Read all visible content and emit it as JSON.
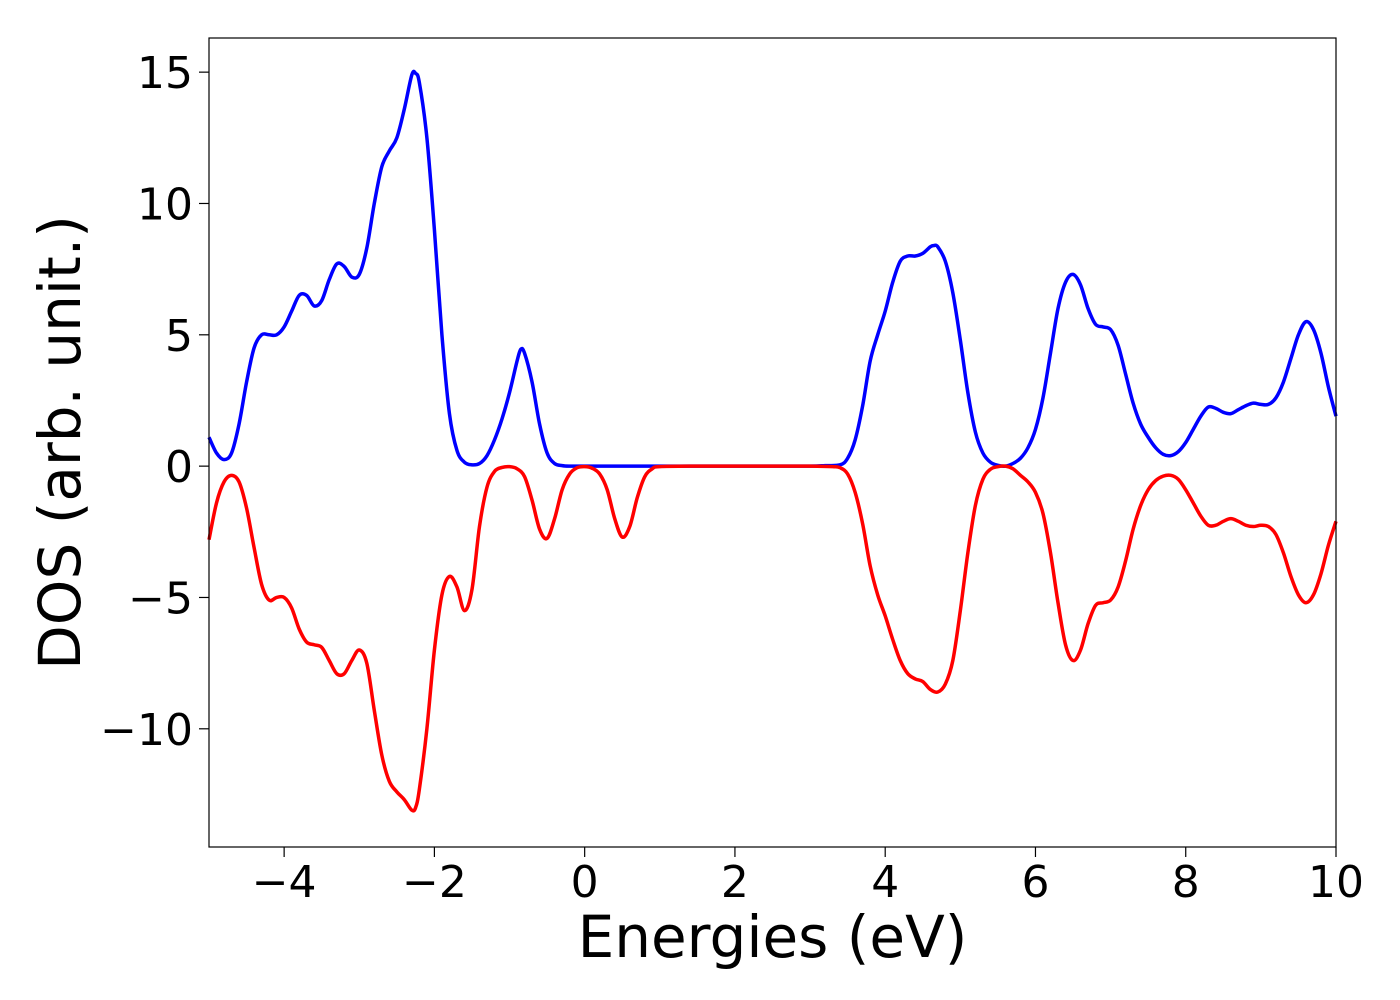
{
  "chart_data": {
    "type": "line",
    "title": "",
    "xlabel": "Energies (eV)",
    "ylabel": "DOS (arb. unit.)",
    "xlim": [
      -5,
      10
    ],
    "ylim": [
      -14.5,
      16.3
    ],
    "x_ticks": [
      -4,
      -2,
      0,
      2,
      4,
      6,
      8,
      10
    ],
    "x_tick_labels": [
      "−4",
      "−2",
      "0",
      "2",
      "4",
      "6",
      "8",
      "10"
    ],
    "y_ticks": [
      -10,
      -5,
      0,
      5,
      10,
      15
    ],
    "y_tick_labels": [
      "−10",
      "−5",
      "0",
      "5",
      "10",
      "15"
    ],
    "grid": false,
    "legend": "none",
    "series": [
      {
        "color": "#0000ff",
        "points": [
          [
            -5.0,
            1.1
          ],
          [
            -4.9,
            0.5
          ],
          [
            -4.8,
            0.25
          ],
          [
            -4.7,
            0.5
          ],
          [
            -4.6,
            1.6
          ],
          [
            -4.5,
            3.2
          ],
          [
            -4.4,
            4.5
          ],
          [
            -4.3,
            5.0
          ],
          [
            -4.2,
            5.0
          ],
          [
            -4.1,
            5.0
          ],
          [
            -4.0,
            5.3
          ],
          [
            -3.9,
            5.9
          ],
          [
            -3.8,
            6.5
          ],
          [
            -3.7,
            6.5
          ],
          [
            -3.6,
            6.1
          ],
          [
            -3.5,
            6.3
          ],
          [
            -3.4,
            7.1
          ],
          [
            -3.3,
            7.7
          ],
          [
            -3.2,
            7.6
          ],
          [
            -3.1,
            7.2
          ],
          [
            -3.0,
            7.3
          ],
          [
            -2.9,
            8.3
          ],
          [
            -2.8,
            10.0
          ],
          [
            -2.7,
            11.4
          ],
          [
            -2.6,
            12.0
          ],
          [
            -2.5,
            12.5
          ],
          [
            -2.4,
            13.6
          ],
          [
            -2.3,
            14.9
          ],
          [
            -2.25,
            14.95
          ],
          [
            -2.2,
            14.6
          ],
          [
            -2.1,
            12.5
          ],
          [
            -2.0,
            9.0
          ],
          [
            -1.9,
            5.0
          ],
          [
            -1.8,
            2.0
          ],
          [
            -1.7,
            0.6
          ],
          [
            -1.6,
            0.15
          ],
          [
            -1.5,
            0.05
          ],
          [
            -1.4,
            0.1
          ],
          [
            -1.3,
            0.4
          ],
          [
            -1.2,
            1.0
          ],
          [
            -1.1,
            1.8
          ],
          [
            -1.0,
            2.8
          ],
          [
            -0.9,
            4.0
          ],
          [
            -0.85,
            4.45
          ],
          [
            -0.8,
            4.3
          ],
          [
            -0.7,
            3.2
          ],
          [
            -0.6,
            1.6
          ],
          [
            -0.5,
            0.5
          ],
          [
            -0.4,
            0.1
          ],
          [
            -0.3,
            0.02
          ],
          [
            -0.2,
            0.0
          ],
          [
            0.0,
            0.0
          ],
          [
            0.5,
            0.0
          ],
          [
            1.0,
            0.0
          ],
          [
            1.5,
            0.0
          ],
          [
            2.0,
            0.0
          ],
          [
            2.5,
            0.0
          ],
          [
            3.0,
            0.0
          ],
          [
            3.2,
            0.02
          ],
          [
            3.4,
            0.05
          ],
          [
            3.5,
            0.3
          ],
          [
            3.6,
            1.0
          ],
          [
            3.7,
            2.3
          ],
          [
            3.8,
            4.0
          ],
          [
            3.9,
            5.0
          ],
          [
            4.0,
            5.9
          ],
          [
            4.1,
            7.0
          ],
          [
            4.2,
            7.8
          ],
          [
            4.3,
            8.0
          ],
          [
            4.4,
            8.0
          ],
          [
            4.5,
            8.1
          ],
          [
            4.6,
            8.35
          ],
          [
            4.65,
            8.4
          ],
          [
            4.7,
            8.35
          ],
          [
            4.8,
            7.8
          ],
          [
            4.9,
            6.6
          ],
          [
            5.0,
            4.8
          ],
          [
            5.1,
            2.8
          ],
          [
            5.2,
            1.3
          ],
          [
            5.3,
            0.5
          ],
          [
            5.4,
            0.15
          ],
          [
            5.5,
            0.03
          ],
          [
            5.6,
            0.0
          ],
          [
            5.7,
            0.1
          ],
          [
            5.8,
            0.3
          ],
          [
            5.9,
            0.7
          ],
          [
            6.0,
            1.4
          ],
          [
            6.1,
            2.6
          ],
          [
            6.2,
            4.3
          ],
          [
            6.3,
            6.0
          ],
          [
            6.4,
            7.0
          ],
          [
            6.5,
            7.3
          ],
          [
            6.6,
            6.9
          ],
          [
            6.7,
            6.0
          ],
          [
            6.8,
            5.4
          ],
          [
            6.9,
            5.3
          ],
          [
            7.0,
            5.2
          ],
          [
            7.1,
            4.6
          ],
          [
            7.2,
            3.5
          ],
          [
            7.3,
            2.4
          ],
          [
            7.4,
            1.6
          ],
          [
            7.5,
            1.1
          ],
          [
            7.6,
            0.7
          ],
          [
            7.7,
            0.45
          ],
          [
            7.8,
            0.4
          ],
          [
            7.9,
            0.55
          ],
          [
            8.0,
            0.9
          ],
          [
            8.1,
            1.4
          ],
          [
            8.2,
            1.9
          ],
          [
            8.3,
            2.25
          ],
          [
            8.4,
            2.2
          ],
          [
            8.5,
            2.05
          ],
          [
            8.6,
            2.0
          ],
          [
            8.7,
            2.15
          ],
          [
            8.8,
            2.3
          ],
          [
            8.9,
            2.4
          ],
          [
            9.0,
            2.35
          ],
          [
            9.1,
            2.35
          ],
          [
            9.2,
            2.6
          ],
          [
            9.3,
            3.2
          ],
          [
            9.4,
            4.1
          ],
          [
            9.5,
            5.0
          ],
          [
            9.6,
            5.5
          ],
          [
            9.7,
            5.2
          ],
          [
            9.8,
            4.3
          ],
          [
            9.9,
            3.0
          ],
          [
            10.0,
            1.9
          ]
        ]
      },
      {
        "color": "#ff0000",
        "points": [
          [
            -5.0,
            -2.8
          ],
          [
            -4.9,
            -1.4
          ],
          [
            -4.8,
            -0.6
          ],
          [
            -4.7,
            -0.35
          ],
          [
            -4.6,
            -0.6
          ],
          [
            -4.5,
            -1.6
          ],
          [
            -4.4,
            -3.1
          ],
          [
            -4.3,
            -4.5
          ],
          [
            -4.2,
            -5.1
          ],
          [
            -4.1,
            -5.0
          ],
          [
            -4.0,
            -5.0
          ],
          [
            -3.9,
            -5.4
          ],
          [
            -3.8,
            -6.2
          ],
          [
            -3.7,
            -6.7
          ],
          [
            -3.6,
            -6.8
          ],
          [
            -3.5,
            -6.9
          ],
          [
            -3.4,
            -7.4
          ],
          [
            -3.3,
            -7.9
          ],
          [
            -3.2,
            -7.9
          ],
          [
            -3.1,
            -7.4
          ],
          [
            -3.0,
            -7.0
          ],
          [
            -2.9,
            -7.5
          ],
          [
            -2.8,
            -9.3
          ],
          [
            -2.7,
            -11.0
          ],
          [
            -2.6,
            -12.0
          ],
          [
            -2.5,
            -12.4
          ],
          [
            -2.4,
            -12.7
          ],
          [
            -2.3,
            -13.1
          ],
          [
            -2.25,
            -13.0
          ],
          [
            -2.2,
            -12.3
          ],
          [
            -2.1,
            -10.0
          ],
          [
            -2.0,
            -7.0
          ],
          [
            -1.9,
            -4.9
          ],
          [
            -1.8,
            -4.2
          ],
          [
            -1.7,
            -4.6
          ],
          [
            -1.6,
            -5.5
          ],
          [
            -1.5,
            -4.7
          ],
          [
            -1.4,
            -2.3
          ],
          [
            -1.3,
            -0.8
          ],
          [
            -1.2,
            -0.2
          ],
          [
            -1.1,
            -0.05
          ],
          [
            -1.0,
            -0.02
          ],
          [
            -0.9,
            -0.1
          ],
          [
            -0.8,
            -0.4
          ],
          [
            -0.7,
            -1.3
          ],
          [
            -0.6,
            -2.4
          ],
          [
            -0.5,
            -2.75
          ],
          [
            -0.4,
            -2.0
          ],
          [
            -0.3,
            -0.9
          ],
          [
            -0.2,
            -0.3
          ],
          [
            -0.1,
            -0.06
          ],
          [
            0.0,
            -0.02
          ],
          [
            0.1,
            -0.08
          ],
          [
            0.2,
            -0.3
          ],
          [
            0.3,
            -0.9
          ],
          [
            0.4,
            -2.0
          ],
          [
            0.5,
            -2.7
          ],
          [
            0.6,
            -2.3
          ],
          [
            0.7,
            -1.2
          ],
          [
            0.8,
            -0.4
          ],
          [
            0.9,
            -0.1
          ],
          [
            1.0,
            -0.02
          ],
          [
            1.5,
            0.0
          ],
          [
            2.0,
            0.0
          ],
          [
            2.5,
            0.0
          ],
          [
            3.0,
            0.0
          ],
          [
            3.3,
            -0.02
          ],
          [
            3.4,
            -0.06
          ],
          [
            3.5,
            -0.3
          ],
          [
            3.6,
            -1.0
          ],
          [
            3.7,
            -2.2
          ],
          [
            3.8,
            -3.8
          ],
          [
            3.9,
            -4.9
          ],
          [
            4.0,
            -5.7
          ],
          [
            4.1,
            -6.6
          ],
          [
            4.2,
            -7.4
          ],
          [
            4.3,
            -7.9
          ],
          [
            4.4,
            -8.1
          ],
          [
            4.5,
            -8.2
          ],
          [
            4.6,
            -8.5
          ],
          [
            4.7,
            -8.6
          ],
          [
            4.8,
            -8.3
          ],
          [
            4.9,
            -7.4
          ],
          [
            5.0,
            -5.5
          ],
          [
            5.1,
            -3.3
          ],
          [
            5.2,
            -1.5
          ],
          [
            5.3,
            -0.5
          ],
          [
            5.4,
            -0.12
          ],
          [
            5.5,
            -0.02
          ],
          [
            5.6,
            0.0
          ],
          [
            5.7,
            -0.1
          ],
          [
            5.8,
            -0.35
          ],
          [
            5.9,
            -0.6
          ],
          [
            6.0,
            -1.0
          ],
          [
            6.1,
            -1.8
          ],
          [
            6.2,
            -3.3
          ],
          [
            6.3,
            -5.2
          ],
          [
            6.4,
            -6.8
          ],
          [
            6.5,
            -7.4
          ],
          [
            6.6,
            -7.0
          ],
          [
            6.7,
            -6.0
          ],
          [
            6.8,
            -5.3
          ],
          [
            6.9,
            -5.2
          ],
          [
            7.0,
            -5.1
          ],
          [
            7.1,
            -4.6
          ],
          [
            7.2,
            -3.6
          ],
          [
            7.3,
            -2.4
          ],
          [
            7.4,
            -1.5
          ],
          [
            7.5,
            -0.9
          ],
          [
            7.6,
            -0.55
          ],
          [
            7.7,
            -0.38
          ],
          [
            7.8,
            -0.35
          ],
          [
            7.9,
            -0.5
          ],
          [
            8.0,
            -0.9
          ],
          [
            8.1,
            -1.4
          ],
          [
            8.2,
            -1.9
          ],
          [
            8.3,
            -2.25
          ],
          [
            8.4,
            -2.25
          ],
          [
            8.5,
            -2.1
          ],
          [
            8.6,
            -2.0
          ],
          [
            8.7,
            -2.1
          ],
          [
            8.8,
            -2.25
          ],
          [
            8.9,
            -2.3
          ],
          [
            9.0,
            -2.25
          ],
          [
            9.1,
            -2.3
          ],
          [
            9.2,
            -2.6
          ],
          [
            9.3,
            -3.3
          ],
          [
            9.4,
            -4.2
          ],
          [
            9.5,
            -4.9
          ],
          [
            9.6,
            -5.2
          ],
          [
            9.7,
            -4.9
          ],
          [
            9.8,
            -4.1
          ],
          [
            9.9,
            -3.0
          ],
          [
            10.0,
            -2.1
          ]
        ]
      }
    ]
  }
}
